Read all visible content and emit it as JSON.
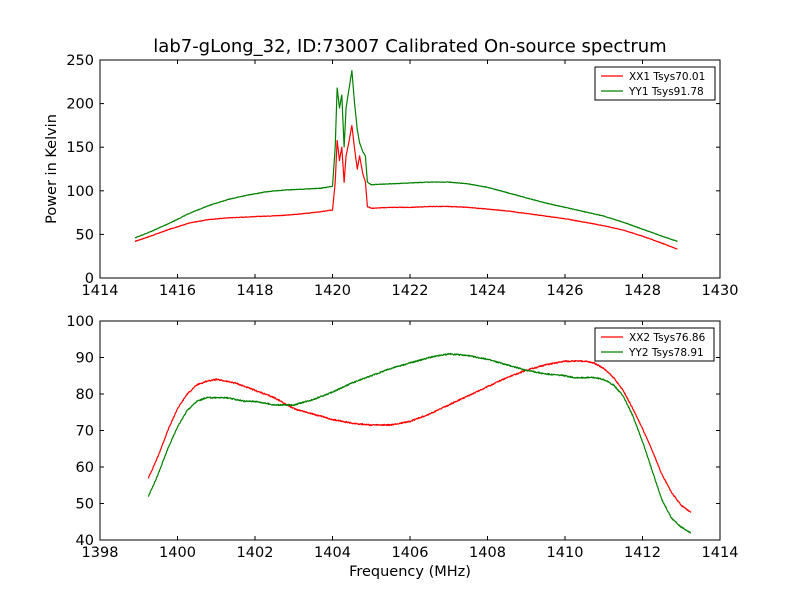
{
  "figure": {
    "title": "lab7-gLong_32, ID:73007 Calibrated On-source spectrum"
  },
  "chart_data": [
    {
      "type": "line",
      "title": "lab7-gLong_32, ID:73007 Calibrated On-source spectrum",
      "xlabel": "",
      "ylabel": "Power in Kelvin",
      "xlim": [
        1414,
        1430
      ],
      "ylim": [
        0,
        250
      ],
      "xticks": [
        1414,
        1416,
        1418,
        1420,
        1422,
        1424,
        1426,
        1428,
        1430
      ],
      "yticks": [
        0,
        50,
        100,
        150,
        200,
        250
      ],
      "grid": false,
      "legend_position": "top-right",
      "series": [
        {
          "name": "XX1 Tsys70.01",
          "color": "#ff0000",
          "x": [
            1414.9,
            1415.3,
            1415.8,
            1416.3,
            1416.8,
            1417.3,
            1417.8,
            1418.3,
            1418.8,
            1419.3,
            1419.7,
            1420.0,
            1420.07,
            1420.12,
            1420.18,
            1420.24,
            1420.3,
            1420.35,
            1420.42,
            1420.5,
            1420.57,
            1420.64,
            1420.7,
            1420.78,
            1420.85,
            1420.9,
            1421.0,
            1421.5,
            1422.0,
            1422.5,
            1423.0,
            1423.5,
            1424.0,
            1424.5,
            1425.0,
            1425.5,
            1426.0,
            1426.5,
            1427.0,
            1427.5,
            1428.0,
            1428.5,
            1428.9
          ],
          "y": [
            42,
            48,
            56,
            63,
            67,
            69,
            70,
            71,
            72,
            74,
            76,
            78,
            110,
            158,
            135,
            150,
            110,
            140,
            155,
            175,
            148,
            125,
            140,
            120,
            110,
            82,
            80,
            81,
            81,
            82,
            82,
            81,
            79,
            77,
            74,
            71,
            68,
            64,
            60,
            55,
            48,
            40,
            33
          ]
        },
        {
          "name": "YY1 Tsys91.78",
          "color": "#008000",
          "x": [
            1414.9,
            1415.3,
            1415.8,
            1416.3,
            1416.8,
            1417.3,
            1417.8,
            1418.3,
            1418.8,
            1419.3,
            1419.7,
            1420.0,
            1420.07,
            1420.12,
            1420.18,
            1420.24,
            1420.3,
            1420.35,
            1420.42,
            1420.5,
            1420.57,
            1420.64,
            1420.7,
            1420.78,
            1420.85,
            1420.9,
            1421.0,
            1421.5,
            1422.0,
            1422.5,
            1423.0,
            1423.5,
            1424.0,
            1424.5,
            1425.0,
            1425.5,
            1426.0,
            1426.5,
            1427.0,
            1427.5,
            1428.0,
            1428.5,
            1428.9
          ],
          "y": [
            46,
            53,
            63,
            74,
            83,
            90,
            95,
            99,
            101,
            102,
            103,
            105,
            150,
            218,
            195,
            210,
            150,
            195,
            215,
            238,
            200,
            170,
            155,
            145,
            140,
            110,
            107,
            108,
            109,
            110,
            110,
            108,
            104,
            98,
            92,
            86,
            81,
            76,
            71,
            64,
            56,
            48,
            42
          ]
        }
      ]
    },
    {
      "type": "line",
      "title": "",
      "xlabel": "Frequency (MHz)",
      "ylabel": "",
      "xlim": [
        1398,
        1414
      ],
      "ylim": [
        40,
        100
      ],
      "xticks": [
        1398,
        1400,
        1402,
        1404,
        1406,
        1408,
        1410,
        1412,
        1414
      ],
      "yticks": [
        40,
        50,
        60,
        70,
        80,
        90,
        100
      ],
      "grid": false,
      "legend_position": "top-right",
      "series": [
        {
          "name": "XX2 Tsys76.86",
          "color": "#ff0000",
          "x": [
            1399.25,
            1399.5,
            1399.75,
            1400.0,
            1400.25,
            1400.5,
            1400.75,
            1401.0,
            1401.25,
            1401.5,
            1401.75,
            1402.0,
            1402.5,
            1403.0,
            1403.5,
            1404.0,
            1404.5,
            1405.0,
            1405.5,
            1406.0,
            1406.5,
            1407.0,
            1407.5,
            1408.0,
            1408.5,
            1409.0,
            1409.5,
            1410.0,
            1410.25,
            1410.5,
            1410.75,
            1411.0,
            1411.25,
            1411.5,
            1411.75,
            1412.0,
            1412.25,
            1412.5,
            1412.75,
            1413.0,
            1413.25
          ],
          "y": [
            57,
            63,
            70,
            76,
            80,
            82.5,
            83.5,
            84,
            83.5,
            83,
            82,
            81,
            79,
            76,
            74.5,
            73,
            72,
            71.5,
            71.5,
            72.5,
            74.5,
            77,
            79.5,
            82,
            84.5,
            86.5,
            88,
            89,
            89,
            89,
            88.5,
            87,
            84.5,
            81,
            76,
            70.5,
            64.5,
            58,
            53,
            49.5,
            47.5
          ]
        },
        {
          "name": "YY2 Tsys78.91",
          "color": "#008000",
          "x": [
            1399.25,
            1399.5,
            1399.75,
            1400.0,
            1400.25,
            1400.5,
            1400.75,
            1401.0,
            1401.25,
            1401.5,
            1401.75,
            1402.0,
            1402.5,
            1403.0,
            1403.5,
            1404.0,
            1404.5,
            1405.0,
            1405.5,
            1406.0,
            1406.5,
            1407.0,
            1407.5,
            1408.0,
            1408.5,
            1409.0,
            1409.5,
            1410.0,
            1410.25,
            1410.5,
            1410.75,
            1411.0,
            1411.25,
            1411.5,
            1411.75,
            1412.0,
            1412.25,
            1412.5,
            1412.75,
            1413.0,
            1413.25
          ],
          "y": [
            52,
            58,
            65,
            71,
            75.5,
            78,
            79,
            79,
            79,
            78.5,
            78,
            78,
            77,
            77,
            78.5,
            80.5,
            83,
            85,
            87,
            88.5,
            90,
            91,
            90.5,
            89.5,
            88,
            86.5,
            85.5,
            85,
            84.5,
            84.5,
            84.5,
            84,
            82.5,
            79.5,
            74,
            67,
            59,
            51,
            46,
            43.5,
            42
          ]
        }
      ]
    }
  ]
}
